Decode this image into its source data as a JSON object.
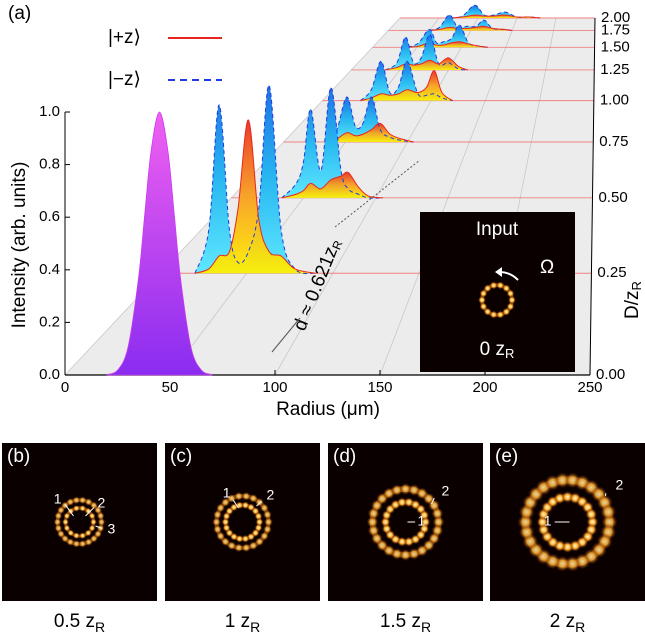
{
  "chart_data": {
    "type": "waterfall",
    "panel_label": "(a)",
    "xlabel": "Radius (μm)",
    "ylabel": "Intensity (arb. units)",
    "zlabel": "D/z",
    "zlabel_sub": "R",
    "xlim": [
      0,
      250
    ],
    "xticks": [
      0,
      50,
      100,
      150,
      200,
      250
    ],
    "ylim": [
      0,
      1
    ],
    "yticks": [
      {
        "value": 0,
        "label": "0.0"
      },
      0.2,
      0.4,
      0.6,
      0.8,
      {
        "value": 1,
        "label": "1.0"
      }
    ],
    "zlim": [
      0,
      2
    ],
    "zticks": [
      {
        "value": 0,
        "label": "0.00"
      },
      {
        "value": 0.25,
        "label": "0.25"
      },
      {
        "value": 0.5,
        "label": "0.50"
      },
      {
        "value": 0.75,
        "label": "0.75"
      },
      {
        "value": 1,
        "label": "1.00"
      },
      {
        "value": 1.25,
        "label": "1.25"
      },
      {
        "value": 1.5,
        "label": "1.50"
      },
      {
        "value": 1.75,
        "label": "1.75"
      },
      {
        "value": 2,
        "label": "2.00"
      }
    ],
    "input": {
      "color": "#c83cf0",
      "x": [
        20,
        25,
        30,
        35,
        38,
        41,
        45,
        49,
        52,
        55,
        60,
        65,
        70
      ],
      "values": [
        0.002,
        0.018,
        0.105,
        0.368,
        0.613,
        0.852,
        1,
        0.852,
        0.613,
        0.368,
        0.105,
        0.018,
        0.002
      ]
    },
    "z": [
      0.25,
      0.5,
      0.75,
      1,
      1.25,
      1.5,
      1.75,
      2
    ],
    "x": [
      [
        20,
        28,
        34,
        40,
        45,
        51,
        57,
        63,
        70,
        78,
        90
      ],
      [
        35,
        45,
        50,
        55,
        62,
        69,
        76,
        81,
        88,
        95,
        105
      ],
      [
        35,
        43,
        51,
        58,
        64,
        71,
        78,
        86,
        95,
        105
      ],
      [
        35,
        45,
        54,
        62,
        70,
        78,
        88,
        96,
        103,
        110,
        120
      ],
      [
        35,
        47,
        56,
        64,
        72,
        81,
        90,
        100,
        110,
        120
      ],
      [
        40,
        52,
        64,
        72,
        80,
        89,
        98,
        108,
        120,
        130
      ],
      [
        50,
        62,
        74,
        84,
        95,
        106,
        116,
        126,
        140,
        150
      ],
      [
        65,
        80,
        96,
        108,
        120,
        135,
        150,
        165,
        180
      ]
    ],
    "series": [
      {
        "name": "|+z⟩",
        "color": "#e8261e",
        "dashed": false,
        "values": [
          [
            0,
            0.02,
            0.08,
            0.1,
            0.3,
            0.71,
            0.25,
            0.1,
            0.08,
            0.02,
            0
          ],
          [
            0,
            0.02,
            0.04,
            0.08,
            0.05,
            0.1,
            0.12,
            0.14,
            0.06,
            0.01,
            0
          ],
          [
            0,
            0.02,
            0.06,
            0.04,
            0.05,
            0.08,
            0.12,
            0.05,
            0.02,
            0
          ],
          [
            0,
            0.02,
            0.05,
            0.04,
            0.05,
            0.08,
            0.06,
            0.1,
            0.22,
            0.06,
            0
          ],
          [
            0,
            0.02,
            0.05,
            0.04,
            0.05,
            0.08,
            0.05,
            0.1,
            0.03,
            0
          ],
          [
            0,
            0.01,
            0.04,
            0.02,
            0.02,
            0.04,
            0.05,
            0.03,
            0.01,
            0
          ],
          [
            0,
            0.01,
            0.03,
            0.02,
            0.02,
            0.03,
            0.04,
            0.02,
            0.01,
            0
          ],
          [
            0,
            0.01,
            0.03,
            0.02,
            0.02,
            0.03,
            0.01,
            0.01,
            0
          ]
        ]
      },
      {
        "name": "|−z⟩",
        "color": "#1f3ce0",
        "dashed": true,
        "values": [
          [
            0,
            0.2,
            0.78,
            0.2,
            0.05,
            0.1,
            0.3,
            0.87,
            0.2,
            0.02,
            0
          ],
          [
            0,
            0.08,
            0.2,
            0.49,
            0.15,
            0.61,
            0.15,
            0.05,
            0.02,
            0,
            0
          ],
          [
            0,
            0.08,
            0.29,
            0.1,
            0.12,
            0.29,
            0.08,
            0.03,
            0.01,
            0
          ],
          [
            0,
            0.08,
            0.29,
            0.06,
            0.1,
            0.29,
            0.05,
            0.04,
            0.05,
            0.02,
            0
          ],
          [
            0,
            0.06,
            0.27,
            0.06,
            0.1,
            0.29,
            0.05,
            0.06,
            0.01,
            0
          ],
          [
            0,
            0.04,
            0.16,
            0.04,
            0.05,
            0.08,
            0.2,
            0.04,
            0.01,
            0
          ],
          [
            0,
            0.03,
            0.15,
            0.03,
            0.04,
            0.04,
            0.1,
            0.02,
            0.01,
            0
          ],
          [
            0,
            0.02,
            0.13,
            0.03,
            0.03,
            0.06,
            0.01,
            0.01,
            0
          ]
        ]
      }
    ],
    "annotation": "d ≈ 0.621z",
    "annotation_sub": "R",
    "inset": {
      "title": "Input",
      "symbol": "Ω",
      "label": "0 z",
      "label_sub": "R"
    },
    "panels": [
      {
        "label": "(b)",
        "caption": "0.5 z",
        "caption_sub": "R",
        "rings": [
          "1",
          "2",
          "3"
        ]
      },
      {
        "label": "(c)",
        "caption": "1 z",
        "caption_sub": "R",
        "rings": [
          "1",
          "2"
        ]
      },
      {
        "label": "(d)",
        "caption": "1.5 z",
        "caption_sub": "R",
        "rings": [
          "1",
          "2"
        ]
      },
      {
        "label": "(e)",
        "caption": "2 z",
        "caption_sub": "R",
        "rings": [
          "1",
          "2"
        ]
      }
    ]
  }
}
